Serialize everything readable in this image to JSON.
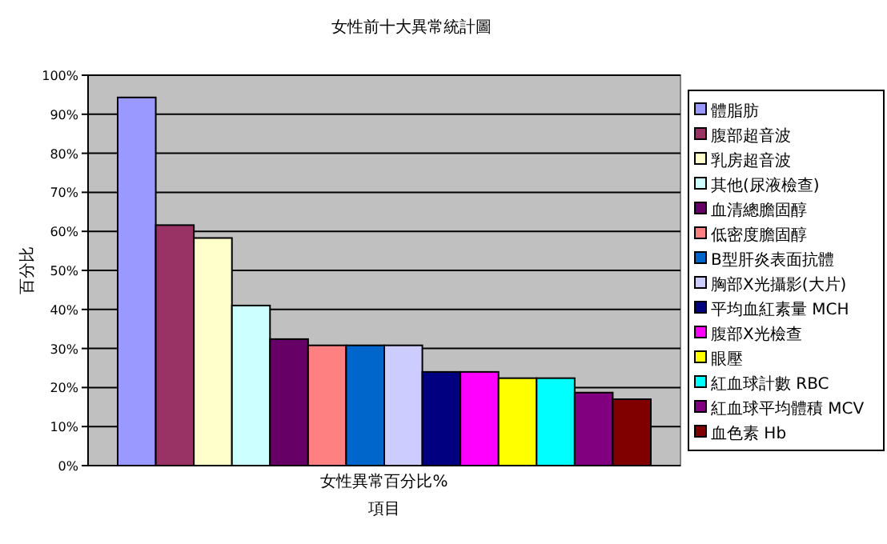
{
  "chart_data": {
    "type": "bar",
    "title": "女性前十大異常統計圖",
    "xlabel": "項目",
    "ylabel": "百分比",
    "categories": [
      "女性異常百分比%"
    ],
    "series": [
      {
        "name": "體脂肪",
        "color": "#9999ff",
        "values": [
          94.3
        ]
      },
      {
        "name": "腹部超音波",
        "color": "#993366",
        "values": [
          61.6
        ]
      },
      {
        "name": "乳房超音波",
        "color": "#ffffcc",
        "values": [
          58.3
        ]
      },
      {
        "name": "其他(尿液檢查)",
        "color": "#ccffff",
        "values": [
          41.0
        ]
      },
      {
        "name": "血清總膽固醇",
        "color": "#660066",
        "values": [
          32.4
        ]
      },
      {
        "name": "低密度膽固醇",
        "color": "#ff8080",
        "values": [
          30.8
        ]
      },
      {
        "name": "B型肝炎表面抗體",
        "color": "#0066cc",
        "values": [
          30.8
        ]
      },
      {
        "name": "胸部X光攝影(大片)",
        "color": "#ccccff",
        "values": [
          30.8
        ]
      },
      {
        "name": "平均血紅素量 MCH",
        "color": "#000080",
        "values": [
          24.0
        ]
      },
      {
        "name": "腹部X光檢查",
        "color": "#ff00ff",
        "values": [
          24.0
        ]
      },
      {
        "name": "眼壓",
        "color": "#ffff00",
        "values": [
          22.4
        ]
      },
      {
        "name": "紅血球計數 RBC",
        "color": "#00ffff",
        "values": [
          22.4
        ]
      },
      {
        "name": "紅血球平均體積 MCV",
        "color": "#800080",
        "values": [
          18.7
        ]
      },
      {
        "name": "血色素 Hb",
        "color": "#800000",
        "values": [
          17.0
        ]
      }
    ],
    "ylim": [
      0,
      100
    ],
    "yticks": [
      {
        "value": 0,
        "label": "0%"
      },
      {
        "value": 10,
        "label": "10%"
      },
      {
        "value": 20,
        "label": "20%"
      },
      {
        "value": 30,
        "label": "30%"
      },
      {
        "value": 40,
        "label": "40%"
      },
      {
        "value": 50,
        "label": "50%"
      },
      {
        "value": 60,
        "label": "60%"
      },
      {
        "value": 70,
        "label": "70%"
      },
      {
        "value": 80,
        "label": "80%"
      },
      {
        "value": 90,
        "label": "90%"
      },
      {
        "value": 100,
        "label": "100%"
      }
    ],
    "grid": "y",
    "legend": "right"
  }
}
